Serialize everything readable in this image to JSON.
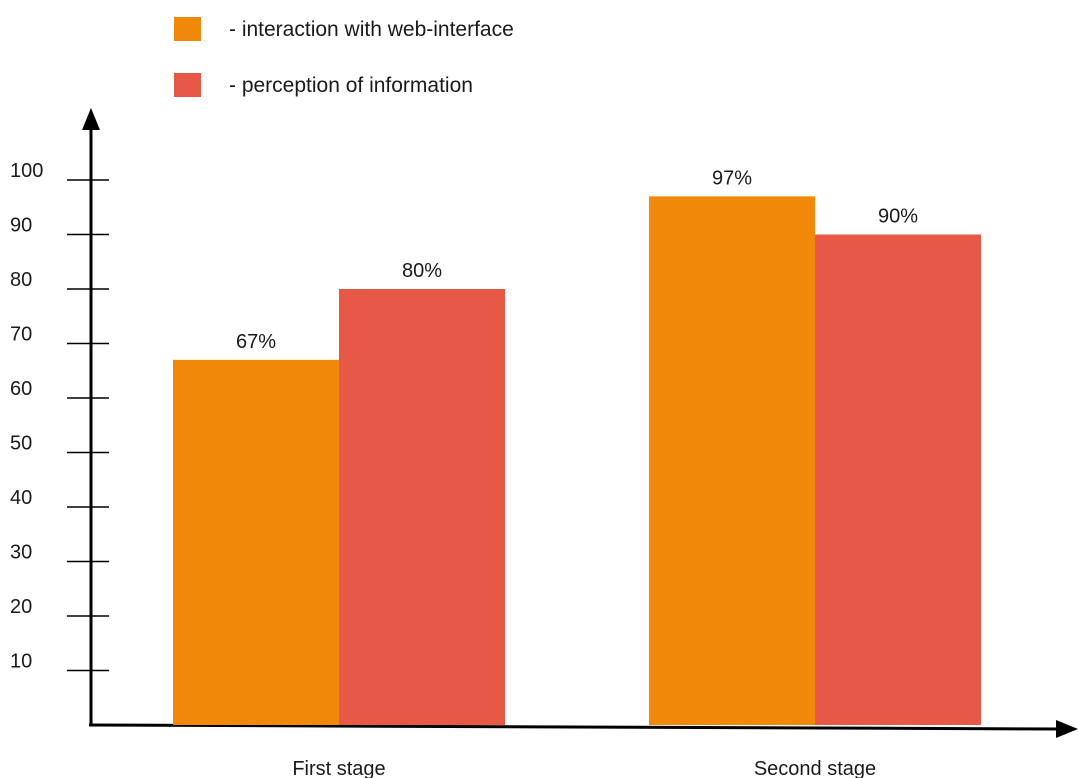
{
  "chart_data": {
    "type": "bar",
    "categories": [
      "First stage",
      "Second stage"
    ],
    "series": [
      {
        "name": "- interaction with web-interface",
        "values": [
          67,
          97
        ],
        "labels": [
          "67%",
          "97%"
        ],
        "color": "#f0890a"
      },
      {
        "name": "- perception of information",
        "values": [
          80,
          90
        ],
        "labels": [
          "80%",
          "90%"
        ],
        "color": "#e85846"
      }
    ],
    "yticks": [
      10,
      20,
      30,
      40,
      50,
      60,
      70,
      80,
      90,
      100
    ],
    "ylim": [
      0,
      100
    ],
    "xlabel": "",
    "ylabel": "",
    "grid": false,
    "legend_position": "top-left"
  }
}
